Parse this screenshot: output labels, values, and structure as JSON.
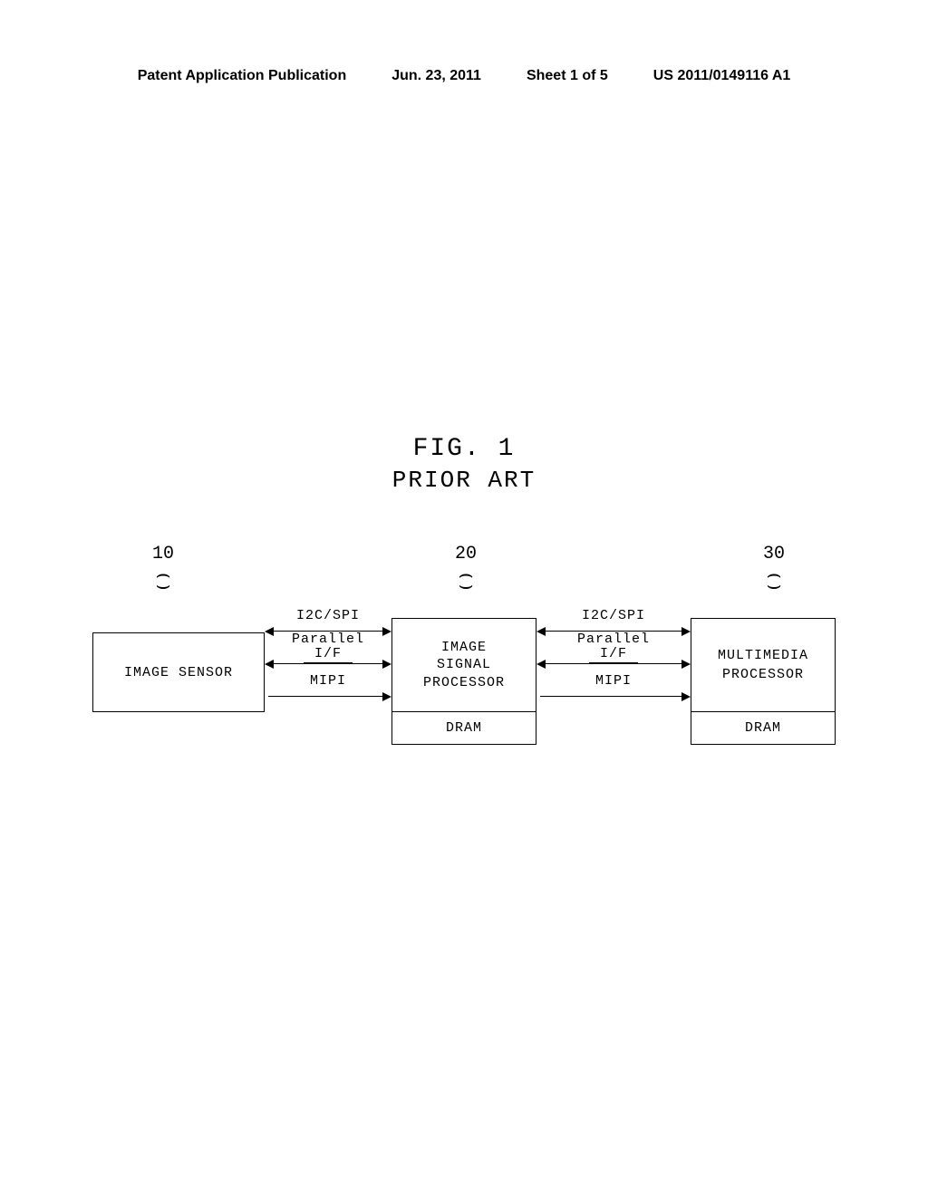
{
  "header": {
    "pub_label": "Patent Application Publication",
    "pub_date": "Jun. 23, 2011",
    "sheet_info": "Sheet 1 of 5",
    "pub_number": "US 2011/0149116 A1"
  },
  "figure": {
    "title": "FIG. 1",
    "subtitle": "PRIOR ART",
    "refs": {
      "r1": "10",
      "r2": "20",
      "r3": "30"
    },
    "boxes": {
      "sensor": "IMAGE SENSOR",
      "isp_line1": "IMAGE",
      "isp_line2": "SIGNAL",
      "isp_line3": "PROCESSOR",
      "isp_dram": "DRAM",
      "mm_line1": "MULTIMEDIA",
      "mm_line2": "PROCESSOR",
      "mm_dram": "DRAM"
    },
    "conn": {
      "i2c": "I2C/SPI",
      "parallel_top": "Parallel",
      "parallel_if": "I/F",
      "mipi": "MIPI"
    }
  },
  "colors": {
    "background": "#ffffff",
    "line": "#000000",
    "text": "#000000"
  }
}
